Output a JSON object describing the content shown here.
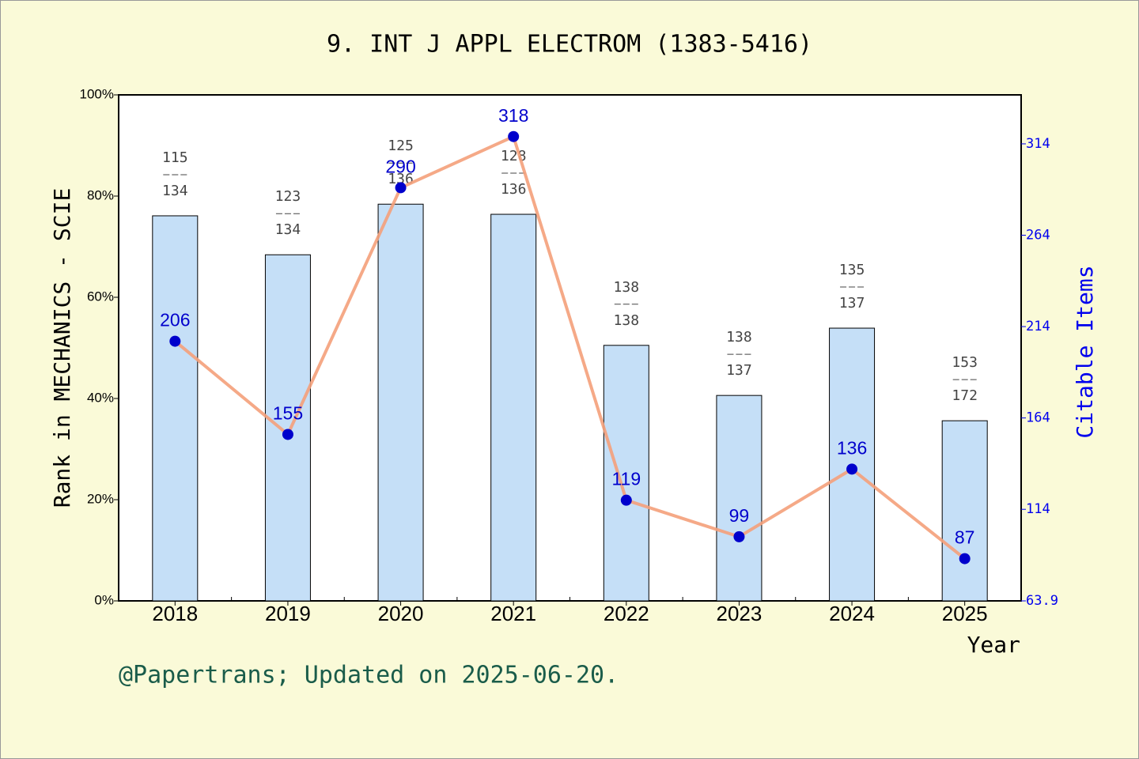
{
  "chart_data": {
    "type": "combo",
    "title": "9. INT J APPL ELECTROM (1383-5416)",
    "footer": "@Papertrans; Updated on 2025-06-20.",
    "x_label": "Year",
    "y_label": "Rank in MECHANICS - SCIE",
    "y2_label": "Citable Items",
    "categories": [
      "2018",
      "2019",
      "2020",
      "2021",
      "2022",
      "2023",
      "2024",
      "2025"
    ],
    "series": [
      {
        "type": "bar",
        "axis": "y",
        "color": "#c5dff7",
        "values": [
          76.1,
          68.4,
          78.4,
          76.4,
          50.5,
          40.6,
          53.9,
          35.6
        ],
        "ranks": [
          "115",
          "123",
          "125",
          "128",
          "138",
          "138",
          "135",
          "153"
        ],
        "totals": [
          "134",
          "134",
          "136",
          "136",
          "138",
          "137",
          "137",
          "172"
        ]
      },
      {
        "type": "line",
        "axis": "y2",
        "color": "#f4a07a",
        "marker_color": "#0000cc",
        "values": [
          206,
          155,
          290,
          318,
          119,
          99,
          136,
          87
        ]
      }
    ],
    "ylim": [
      0,
      100
    ],
    "yticks": [
      {
        "value": 0,
        "label": "0%"
      },
      {
        "value": 20,
        "label": "20%"
      },
      {
        "value": 40,
        "label": "40%"
      },
      {
        "value": 60,
        "label": "60%"
      },
      {
        "value": 80,
        "label": "80%"
      },
      {
        "value": 100,
        "label": "100%"
      }
    ],
    "y2lim": [
      63.9,
      340.8
    ],
    "y2ticks": [
      63.9,
      114,
      164,
      214,
      264,
      314
    ]
  }
}
